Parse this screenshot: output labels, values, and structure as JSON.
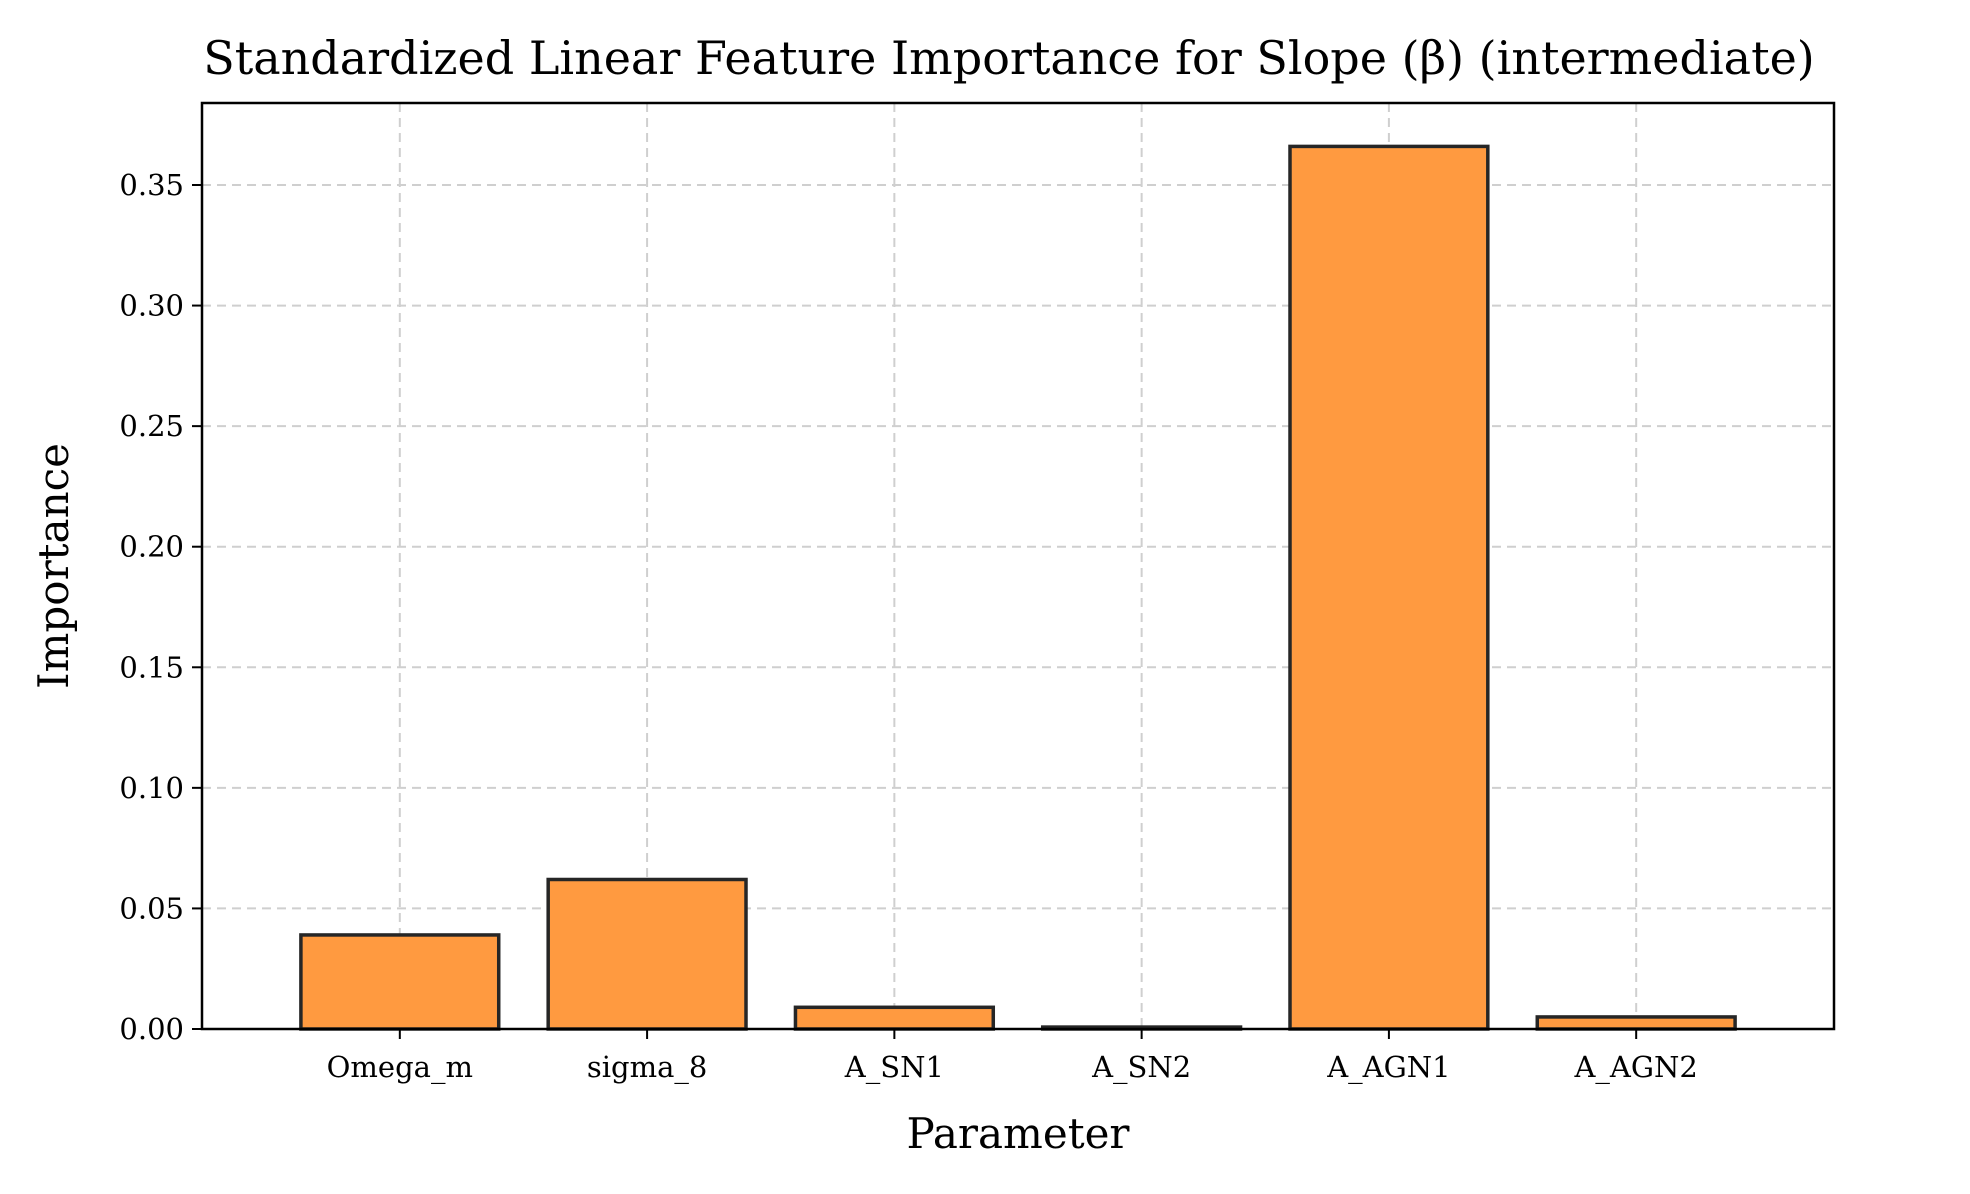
{
  "chart_data": {
    "type": "bar",
    "title": "Standardized Linear Feature Importance for Slope (β) (intermediate)",
    "xlabel": "Parameter",
    "ylabel": "Importance",
    "categories": [
      "Omega_m",
      "sigma_8",
      "A_SN1",
      "A_SN2",
      "A_AGN1",
      "A_AGN2"
    ],
    "values": [
      0.039,
      0.062,
      0.009,
      0.0008,
      0.366,
      0.005
    ],
    "ylim": [
      0,
      0.384
    ],
    "yticks": [
      0.0,
      0.05,
      0.1,
      0.15,
      0.2,
      0.25,
      0.3,
      0.35
    ],
    "ytick_labels": [
      "0.00",
      "0.05",
      "0.10",
      "0.15",
      "0.20",
      "0.25",
      "0.30",
      "0.35"
    ],
    "grid": true,
    "bar_color": "#ff9a40",
    "bar_edge_color": "#262626"
  }
}
